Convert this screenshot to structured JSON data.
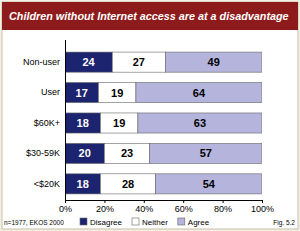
{
  "chart_data": {
    "type": "bar",
    "orientation": "horizontal",
    "stacked": true,
    "data_labels": true,
    "grid": false,
    "legend": "bottom",
    "title": "Children without Internet access are at a disadvantage",
    "annotations": [
      "n=1977, EKOS 2000",
      "Fig. 5.2"
    ],
    "categories": [
      "Non-user",
      "User",
      "$60K+",
      "$30-59K",
      "<$20K"
    ],
    "series": [
      {
        "name": "Disagree",
        "color": "#1c2470",
        "values": [
          24,
          17,
          18,
          20,
          18
        ]
      },
      {
        "name": "Neither",
        "color": "#ffffff",
        "values": [
          27,
          19,
          19,
          23,
          28
        ]
      },
      {
        "name": "Agree",
        "color": "#b4b4dc",
        "values": [
          49,
          64,
          63,
          57,
          54
        ]
      }
    ],
    "xlim": [
      0,
      100
    ],
    "xticks": [
      {
        "value": 0,
        "label": "0%"
      },
      {
        "value": 20,
        "label": "20%"
      },
      {
        "value": 40,
        "label": "40%"
      },
      {
        "value": 60,
        "label": "60%"
      },
      {
        "value": 80,
        "label": "80%"
      },
      {
        "value": 100,
        "label": "100%"
      }
    ]
  }
}
